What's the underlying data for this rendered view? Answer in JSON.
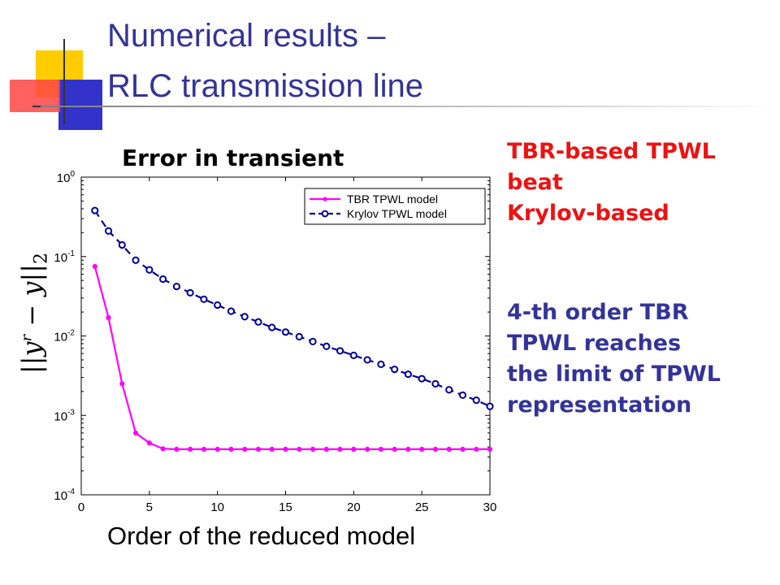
{
  "slide": {
    "title_line1": "Numerical results –",
    "title_line2": "RLC transmission line",
    "chart_heading": "Error in transient",
    "red_note": [
      "TBR-based TPWL",
      "beat",
      "Krylov-based"
    ],
    "blue_note": [
      "4-th order TBR",
      "TPWL  reaches",
      "the limit of TPWL",
      "representation"
    ],
    "colors": {
      "title": "#333399",
      "red_note": "#ee1111",
      "blue_note": "#333399",
      "tbr": "#ff00ff",
      "krylov": "#000099"
    }
  },
  "chart_data": {
    "type": "line",
    "title": "Error in transient",
    "xlabel": "Order of the reduced model",
    "ylabel": "||y^r − y||2",
    "y_scale": "log",
    "xlim": [
      0,
      30
    ],
    "ylim": [
      0.0001,
      1
    ],
    "x_ticks": [
      0,
      5,
      10,
      15,
      20,
      25,
      30
    ],
    "y_ticks": [
      {
        "value": 0.0001,
        "base": "10",
        "exp": "-4"
      },
      {
        "value": 0.001,
        "base": "10",
        "exp": "-3"
      },
      {
        "value": 0.01,
        "base": "10",
        "exp": "-2"
      },
      {
        "value": 0.1,
        "base": "10",
        "exp": "-1"
      },
      {
        "value": 1,
        "base": "10",
        "exp": "0"
      }
    ],
    "grid": false,
    "legend_position": "top-right",
    "x": [
      1,
      2,
      3,
      4,
      5,
      6,
      7,
      8,
      9,
      10,
      11,
      12,
      13,
      14,
      15,
      16,
      17,
      18,
      19,
      20,
      21,
      22,
      23,
      24,
      25,
      26,
      27,
      28,
      29,
      30
    ],
    "series": [
      {
        "name": "TBR TPWL model",
        "color": "#ff00ff",
        "marker": "dot",
        "style": "solid",
        "values": [
          0.075,
          0.017,
          0.0025,
          0.0006,
          0.00045,
          0.00038,
          0.000375,
          0.000375,
          0.000375,
          0.000375,
          0.000375,
          0.000375,
          0.000375,
          0.000375,
          0.000375,
          0.000375,
          0.000375,
          0.000375,
          0.000375,
          0.000375,
          0.000375,
          0.000375,
          0.000375,
          0.000375,
          0.000375,
          0.000375,
          0.000375,
          0.000375,
          0.000375,
          0.000375
        ]
      },
      {
        "name": "Krylov TPWL model",
        "color": "#000099",
        "marker": "circle",
        "style": "dashed",
        "values": [
          0.38,
          0.21,
          0.14,
          0.09,
          0.068,
          0.052,
          0.042,
          0.035,
          0.029,
          0.0245,
          0.0205,
          0.0175,
          0.015,
          0.0128,
          0.0112,
          0.0098,
          0.0085,
          0.0074,
          0.0065,
          0.0057,
          0.005,
          0.0044,
          0.0038,
          0.0033,
          0.0029,
          0.0025,
          0.0021,
          0.0018,
          0.00155,
          0.0013
        ]
      }
    ]
  }
}
